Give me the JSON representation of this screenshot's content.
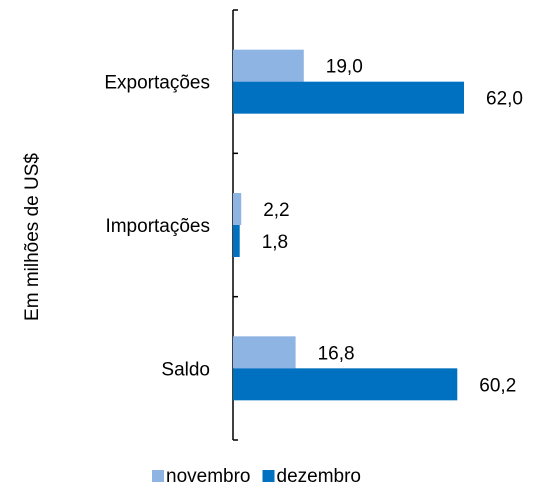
{
  "chart_data": {
    "type": "bar",
    "orientation": "horizontal",
    "title": "",
    "xlabel": "",
    "ylabel": "Em milhões de US$",
    "categories": [
      "Exportações",
      "Importações",
      "Saldo"
    ],
    "series": [
      {
        "name": "novembro",
        "values": [
          19.0,
          2.2,
          16.8
        ],
        "labels": [
          "19,0",
          "2,2",
          "16,8"
        ],
        "color": "#8EB4E3"
      },
      {
        "name": "dezembro",
        "values": [
          62.0,
          1.8,
          60.2
        ],
        "labels": [
          "62,0",
          "1,8",
          "60,2"
        ],
        "color": "#0070C0"
      }
    ],
    "xlim": [
      0,
      70
    ],
    "grid": false,
    "legend": "bottom"
  }
}
